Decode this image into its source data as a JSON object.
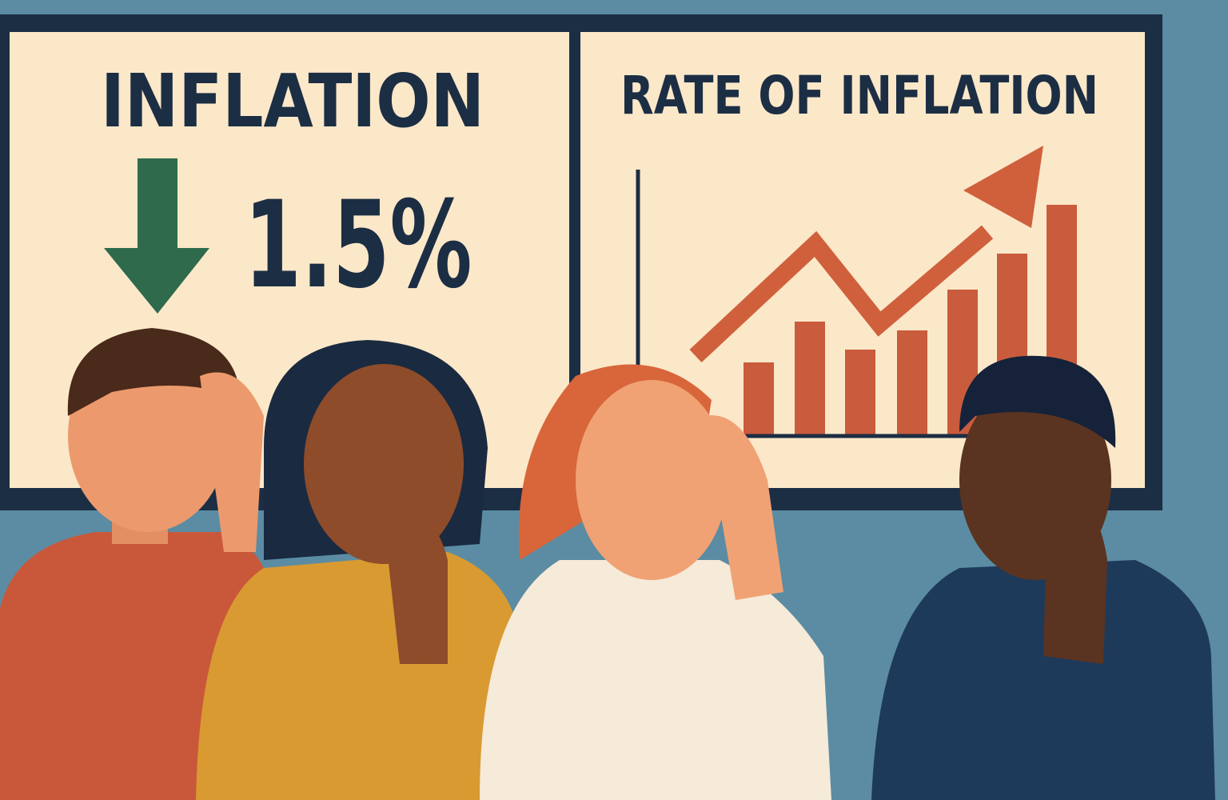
{
  "left_panel": {
    "title": "INFLATION",
    "value": "1.5%"
  },
  "right_panel": {
    "title": "RATE OF INFLATION"
  }
}
